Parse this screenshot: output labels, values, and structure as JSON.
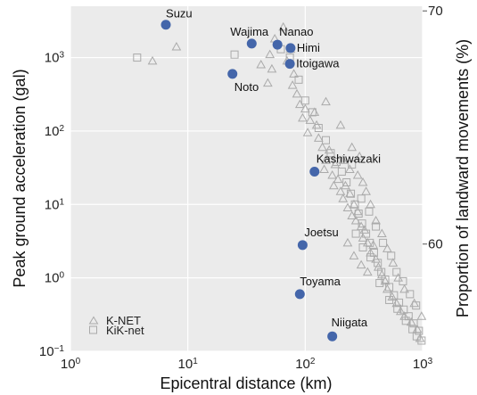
{
  "chart_data": {
    "type": "scatter",
    "xlabel": "Epicentral distance (km)",
    "ylabel": "Peak ground acceleration (gal)",
    "y2label": "Proportion of landward movements (%)",
    "x_scale": "log",
    "y_scale": "log",
    "xlim": [
      1,
      1000
    ],
    "ylim": [
      0.1,
      5000
    ],
    "y2lim": [
      55.4,
      70.2
    ],
    "grid": true,
    "x_tick_labels": [
      "10^0",
      "10^1",
      "10^2",
      "10^3"
    ],
    "y_tick_labels": [
      "10^-1",
      "10^0",
      "10^1",
      "10^2",
      "10^3"
    ],
    "y2_ticks": [
      60,
      70
    ],
    "legend_position": "bottom-left",
    "colors": {
      "highlight": "#4466aa",
      "stations": "#aaaaaa",
      "grid": "#ffffff",
      "background": "#ebebeb"
    },
    "series": [
      {
        "name": "K-NET",
        "marker": "triangle",
        "points": [
          [
            8,
            1400
          ],
          [
            5,
            900
          ],
          [
            65,
            2600
          ],
          [
            55,
            1800
          ],
          [
            50,
            1100
          ],
          [
            52,
            700
          ],
          [
            48,
            450
          ],
          [
            42,
            800
          ],
          [
            75,
            1300
          ],
          [
            70,
            900
          ],
          [
            80,
            600
          ],
          [
            78,
            420
          ],
          [
            85,
            320
          ],
          [
            90,
            230
          ],
          [
            100,
            200
          ],
          [
            95,
            150
          ],
          [
            110,
            140
          ],
          [
            105,
            95
          ],
          [
            120,
            180
          ],
          [
            130,
            80
          ],
          [
            125,
            120
          ],
          [
            140,
            60
          ],
          [
            150,
            40
          ],
          [
            160,
            55
          ],
          [
            145,
            30
          ],
          [
            170,
            25
          ],
          [
            180,
            35
          ],
          [
            175,
            18
          ],
          [
            190,
            22
          ],
          [
            200,
            15
          ],
          [
            210,
            12
          ],
          [
            220,
            18
          ],
          [
            230,
            9
          ],
          [
            240,
            14
          ],
          [
            250,
            7
          ],
          [
            260,
            10
          ],
          [
            270,
            6
          ],
          [
            280,
            8
          ],
          [
            300,
            5
          ],
          [
            310,
            3.5
          ],
          [
            320,
            4.5
          ],
          [
            340,
            3
          ],
          [
            360,
            2.2
          ],
          [
            380,
            2.8
          ],
          [
            400,
            1.8
          ],
          [
            420,
            1.4
          ],
          [
            450,
            1.1
          ],
          [
            480,
            0.9
          ],
          [
            500,
            0.7
          ],
          [
            550,
            0.55
          ],
          [
            600,
            0.45
          ],
          [
            650,
            0.35
          ],
          [
            700,
            0.3
          ],
          [
            800,
            0.25
          ],
          [
            900,
            0.2
          ],
          [
            950,
            0.15
          ],
          [
            230,
            3
          ],
          [
            260,
            2
          ],
          [
            300,
            1.5
          ],
          [
            340,
            1.2
          ],
          [
            150,
            250
          ],
          [
            200,
            120
          ],
          [
            250,
            60
          ],
          [
            210,
            40
          ],
          [
            280,
            25
          ],
          [
            330,
            15
          ],
          [
            360,
            10
          ],
          [
            400,
            6
          ],
          [
            450,
            4
          ],
          [
            500,
            2.5
          ],
          [
            560,
            1.6
          ],
          [
            620,
            1
          ],
          [
            700,
            0.7
          ],
          [
            850,
            0.45
          ],
          [
            980,
            0.3
          ],
          [
            290,
            45
          ],
          [
            240,
            30
          ],
          [
            310,
            20
          ]
        ]
      },
      {
        "name": "KiK-net",
        "marker": "square",
        "points": [
          [
            3.7,
            1000
          ],
          [
            25,
            1100
          ],
          [
            62,
            1300
          ],
          [
            74,
            1000
          ],
          [
            88,
            500
          ],
          [
            100,
            260
          ],
          [
            115,
            180
          ],
          [
            130,
            110
          ],
          [
            150,
            75
          ],
          [
            165,
            50
          ],
          [
            185,
            38
          ],
          [
            205,
            28
          ],
          [
            225,
            20
          ],
          [
            245,
            14
          ],
          [
            265,
            10
          ],
          [
            285,
            7.5
          ],
          [
            305,
            5.5
          ],
          [
            330,
            4
          ],
          [
            355,
            3
          ],
          [
            385,
            2.2
          ],
          [
            415,
            1.6
          ],
          [
            445,
            1.2
          ],
          [
            480,
            0.95
          ],
          [
            520,
            0.75
          ],
          [
            570,
            0.58
          ],
          [
            630,
            0.46
          ],
          [
            690,
            0.37
          ],
          [
            760,
            0.3
          ],
          [
            840,
            0.24
          ],
          [
            930,
            0.19
          ],
          [
            980,
            0.14
          ],
          [
            270,
            4
          ],
          [
            310,
            2.6
          ],
          [
            360,
            1.9
          ],
          [
            430,
            0.85
          ],
          [
            520,
            0.5
          ],
          [
            610,
            0.38
          ],
          [
            720,
            0.26
          ],
          [
            820,
            0.2
          ],
          [
            890,
            0.16
          ],
          [
            250,
            35
          ],
          [
            300,
            12
          ],
          [
            350,
            8
          ],
          [
            400,
            5
          ],
          [
            460,
            3
          ],
          [
            540,
            2
          ],
          [
            600,
            1.2
          ],
          [
            680,
            0.9
          ],
          [
            780,
            0.6
          ],
          [
            880,
            0.42
          ]
        ]
      }
    ],
    "highlighted": [
      {
        "name": "Suzu",
        "x": 6.5,
        "y": 2800
      },
      {
        "name": "Wajima",
        "x": 35,
        "y": 1550
      },
      {
        "name": "Nanao",
        "x": 58,
        "y": 1500
      },
      {
        "name": "Himi",
        "x": 75,
        "y": 1350
      },
      {
        "name": "Itoigawa",
        "x": 74,
        "y": 820
      },
      {
        "name": "Noto",
        "x": 24,
        "y": 600
      },
      {
        "name": "Kashiwazaki",
        "x": 120,
        "y": 28
      },
      {
        "name": "Joetsu",
        "x": 95,
        "y": 2.8
      },
      {
        "name": "Toyama",
        "x": 90,
        "y": 0.6
      },
      {
        "name": "Niigata",
        "x": 170,
        "y": 0.16
      }
    ]
  }
}
